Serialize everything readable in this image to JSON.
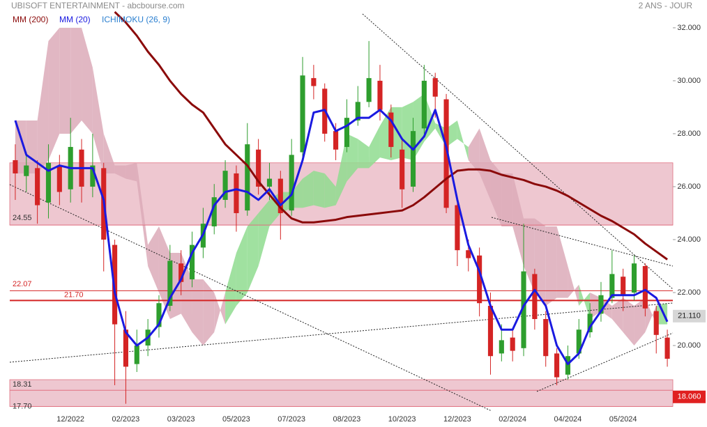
{
  "chart_data": {
    "type": "candlestick",
    "title": "UBISOFT ENTERTAINMENT - abcbourse.com",
    "subtitle": "2 ANS - JOUR",
    "categories": [
      null,
      null,
      null,
      null,
      null,
      "12/2022",
      null,
      null,
      null,
      null,
      "02/2023",
      null,
      null,
      null,
      null,
      "03/2023",
      null,
      null,
      null,
      null,
      "05/2023",
      null,
      null,
      null,
      null,
      "07/2023",
      null,
      null,
      null,
      null,
      "08/2023",
      null,
      null,
      null,
      null,
      "10/2023",
      null,
      null,
      null,
      null,
      "12/2023",
      null,
      null,
      null,
      null,
      "02/2024",
      null,
      null,
      null,
      null,
      "04/2024",
      null,
      null,
      null,
      null,
      "05/2024",
      null,
      null,
      null,
      null
    ],
    "candles": {
      "up_color": "#2e9e2e",
      "down_color": "#d42424",
      "open": [
        27,
        26.4,
        26.7,
        25.4,
        26.8,
        25.9,
        27.4,
        26,
        26.7,
        23.8,
        20.6,
        19.3,
        20,
        20.7,
        21.5,
        23.1,
        22.5,
        23.7,
        24.5,
        25.5,
        26.5,
        25.1,
        27.4,
        26,
        26.3,
        25.1,
        27.3,
        30.1,
        29.7,
        28.1,
        27.5,
        28.5,
        29.2,
        30,
        28.8,
        27.4,
        26,
        28.2,
        30.1,
        29.3,
        25.3,
        23.6,
        23.4,
        21.5,
        19.7,
        20.3,
        19.9,
        22.7,
        21,
        19.7,
        18.9,
        19.7,
        20.5,
        21.2,
        21.8,
        22.6,
        22,
        23,
        21.3,
        20.3
      ],
      "high": [
        27.6,
        27.3,
        27,
        27.6,
        27.2,
        28.6,
        27.8,
        28,
        26.9,
        24,
        21.3,
        20.6,
        21,
        21.9,
        23.8,
        23.6,
        24.3,
        25.2,
        26.1,
        27,
        26.8,
        28.4,
        27.8,
        26.9,
        26.6,
        27.8,
        30.9,
        30.6,
        29.9,
        28.4,
        29.3,
        29.8,
        31.5,
        30.6,
        29.1,
        27.8,
        28.6,
        30.6,
        30.3,
        29.5,
        25.6,
        24,
        23.7,
        22,
        20.8,
        20.6,
        24.6,
        22.9,
        21.3,
        19.9,
        20,
        21,
        21.6,
        22.4,
        23.6,
        22.9,
        23.4,
        23.1,
        21.5,
        20.6
      ],
      "low": [
        25.5,
        25.8,
        24.6,
        24.8,
        25.3,
        25.4,
        25.4,
        25.6,
        22.8,
        18.5,
        17.8,
        19,
        19.6,
        20.3,
        21.3,
        21.9,
        22.2,
        23.3,
        24.2,
        25.2,
        24.3,
        24.9,
        25.7,
        25.5,
        24,
        24.9,
        27.1,
        29.3,
        27.7,
        27,
        27.3,
        28.3,
        29,
        28.5,
        27.1,
        25.2,
        25.8,
        28,
        28.6,
        25,
        23,
        22.8,
        21.1,
        18.9,
        19.4,
        19.4,
        19.6,
        20.6,
        19.2,
        18.5,
        18.7,
        19.5,
        20.3,
        20.9,
        21.6,
        21.3,
        21.7,
        21.1,
        19.7,
        19.2
      ],
      "close": [
        26.5,
        26.8,
        25.3,
        26.9,
        25.8,
        27.5,
        26,
        26.8,
        24,
        20.8,
        19.2,
        20,
        20.6,
        21.6,
        23.2,
        22.4,
        23.8,
        24.6,
        25.6,
        26.6,
        25,
        27.6,
        26,
        26.3,
        25,
        27.2,
        30.2,
        29.8,
        28,
        27.4,
        28.6,
        29.2,
        30.1,
        28.9,
        27.5,
        25.9,
        28.1,
        30,
        29.4,
        25.2,
        23.6,
        23.3,
        21.6,
        19.6,
        20.2,
        19.8,
        22.8,
        21,
        19.6,
        18.8,
        19.6,
        20.6,
        21.2,
        21.9,
        22.7,
        21.9,
        23.1,
        21.4,
        20.4,
        19.5
      ]
    },
    "series": [
      {
        "name": "MM (200)",
        "color": "#8b0a0a",
        "values": [
          null,
          null,
          null,
          null,
          null,
          null,
          null,
          null,
          null,
          32.6,
          32.2,
          31.7,
          31.1,
          30.6,
          30.0,
          29.5,
          29.1,
          28.8,
          28.2,
          27.6,
          27.2,
          26.8,
          26.2,
          25.7,
          25.2,
          24.8,
          24.65,
          24.65,
          24.7,
          24.75,
          24.85,
          24.9,
          24.95,
          25.0,
          25.05,
          25.1,
          25.3,
          25.6,
          25.95,
          26.3,
          26.6,
          26.65,
          26.65,
          26.6,
          26.45,
          26.35,
          26.25,
          26.1,
          26.0,
          25.85,
          25.65,
          25.4,
          25.15,
          24.9,
          24.7,
          24.45,
          24.2,
          23.85,
          23.55,
          23.25
        ]
      },
      {
        "name": "MM (20)",
        "color": "#1a1ae0",
        "values": [
          28.5,
          27.2,
          26.9,
          26.6,
          26.8,
          26.7,
          26.7,
          26.7,
          25.5,
          22,
          20.5,
          20,
          20.3,
          20.8,
          21.8,
          22.5,
          23.5,
          24.2,
          25.3,
          25.8,
          25.9,
          25.8,
          25.5,
          25.9,
          25.3,
          25.7,
          27,
          28.8,
          28.9,
          28.1,
          28.3,
          28.6,
          28.6,
          28.9,
          28.5,
          27.8,
          27.4,
          27.9,
          28.9,
          27.5,
          25.5,
          23.8,
          22.8,
          21.5,
          20.6,
          20.6,
          21.5,
          22.1,
          21.5,
          20,
          19.3,
          19.7,
          20.7,
          21.3,
          21.9,
          21.9,
          21.9,
          22.1,
          21.8,
          20.9
        ]
      }
    ],
    "ichimoku": {
      "name": "ICHIMOKU (26, 9)",
      "color": "#2a7fd0",
      "up_color": "#8fdc8f",
      "down_color": "#dcaab9",
      "span_a": [
        26.5,
        26.5,
        26.5,
        27,
        28,
        28,
        28.5,
        28,
        26.5,
        26.5,
        26.3,
        26.2,
        23,
        22,
        21,
        21.2,
        20.5,
        20,
        20.5,
        22,
        23.5,
        24.5,
        25,
        25.5,
        25.8,
        25.8,
        26.3,
        26.6,
        26.5,
        26,
        28,
        27.8,
        27.5,
        28.3,
        29,
        29,
        29.2,
        29.5,
        28.4,
        28.2,
        28.5,
        27,
        26.5,
        25.5,
        24.5,
        24.5,
        23,
        22,
        21.5,
        21.8,
        21.8,
        22.3,
        21,
        21.3,
        21,
        20.5,
        20,
        20.5,
        21.5,
        21.6
      ],
      "span_b": [
        28.5,
        28.5,
        28.5,
        31.5,
        32,
        32,
        32,
        30.5,
        28,
        26.8,
        26.8,
        26.9,
        23.8,
        24.5,
        23.5,
        23.5,
        22.5,
        22.5,
        22,
        20.8,
        21.5,
        22,
        23,
        24.5,
        25,
        25.2,
        25.2,
        25.3,
        25.2,
        25.3,
        26.2,
        26.7,
        26.7,
        27.1,
        27,
        27.1,
        27,
        27.7,
        28.2,
        27.5,
        27.8,
        27.5,
        28.2,
        27,
        26.5,
        26.5,
        24.8,
        24.8,
        24.5,
        24.5,
        23,
        21.5,
        22,
        21.8,
        21.5,
        21.8,
        21.5,
        21.8,
        20.8,
        20.8
      ]
    },
    "zones": [
      [
        24.55,
        26.9
      ],
      [
        17.7,
        18.71
      ]
    ],
    "zone_color": "#e8b4c0",
    "levels": [
      {
        "value": 24.55,
        "label": "24.55",
        "color": "#333333"
      },
      {
        "value": 22.07,
        "label": "22.07",
        "color": "#d42424"
      },
      {
        "value": 21.7,
        "label": "21.70",
        "color": "#d42424"
      },
      {
        "value": 18.31,
        "label": "18.31",
        "color": "#333333"
      },
      {
        "value": 17.7,
        "label": "17.70",
        "color": "#333333"
      }
    ],
    "last_price": {
      "value": 21.11,
      "label": "21.110"
    },
    "marker": {
      "value": 18.06,
      "label": "18.060"
    },
    "ylim": [
      17.58,
      33.05
    ],
    "yticks": [
      {
        "value": 20,
        "label": "20.000"
      },
      {
        "value": 22,
        "label": "22.000"
      },
      {
        "value": 24,
        "label": "24.000"
      },
      {
        "value": 26,
        "label": "26.000"
      },
      {
        "value": 28,
        "label": "28.000"
      },
      {
        "value": 30,
        "label": "30.000"
      },
      {
        "value": 32,
        "label": "32.000"
      }
    ],
    "grid": false
  }
}
